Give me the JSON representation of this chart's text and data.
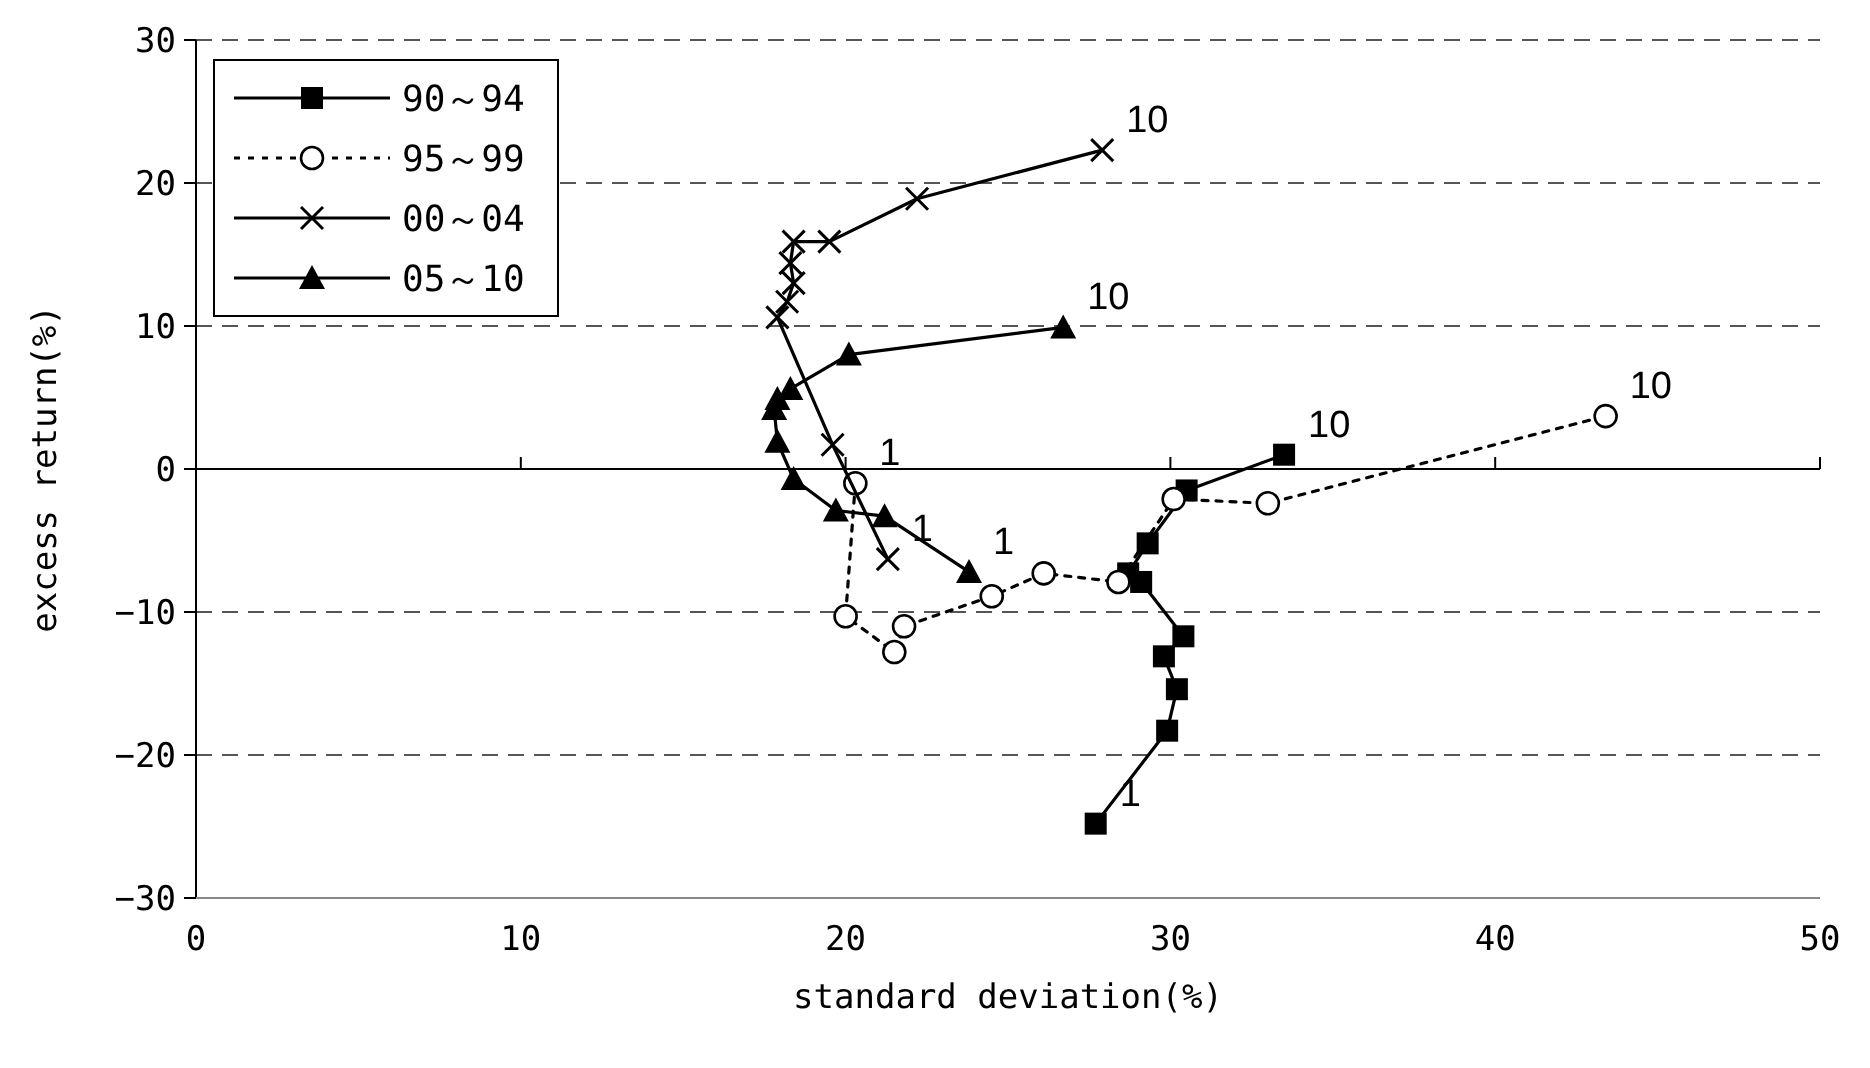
{
  "chart_data": {
    "type": "line",
    "xlabel": "standard deviation(%)",
    "ylabel": "excess return(%)",
    "xlim": [
      0,
      50
    ],
    "xticks": [
      0,
      10,
      20,
      30,
      40,
      50
    ],
    "ylim": [
      -30,
      30
    ],
    "yticks": [
      {
        "value": -30,
        "label": "−30"
      },
      {
        "value": -20,
        "label": "−20"
      },
      {
        "value": -10,
        "label": "−10"
      },
      0,
      10,
      20,
      30
    ],
    "grid": "y",
    "legend": "top left",
    "ref_lines": [
      {
        "axis": "y",
        "value": 0,
        "color": "#000000",
        "line_style": "solid"
      }
    ],
    "series": [
      {
        "name": "90～94",
        "color": "#000000",
        "marker": "square",
        "line_style": "solid",
        "x": [
          27.7,
          29.9,
          30.2,
          29.8,
          30.4,
          29.1,
          28.7,
          29.3,
          30.5,
          33.5
        ],
        "values": [
          -24.8,
          -18.3,
          -15.4,
          -13.1,
          -11.7,
          -7.9,
          -7.3,
          -5.2,
          -1.5,
          1.0
        ]
      },
      {
        "name": "95～99",
        "color": "#000000",
        "marker": "circle",
        "line_style": "dotted",
        "x": [
          20.3,
          20.0,
          21.5,
          21.8,
          24.5,
          26.1,
          28.4,
          30.1,
          33.0,
          43.4
        ],
        "values": [
          -1.0,
          -10.3,
          -12.8,
          -11.0,
          -8.9,
          -7.3,
          -7.9,
          -2.1,
          -2.4,
          3.7
        ]
      },
      {
        "name": "00～04",
        "color": "#000000",
        "marker": "cross",
        "line_style": "solid",
        "x": [
          21.3,
          19.6,
          17.9,
          18.2,
          18.4,
          18.3,
          18.4,
          19.5,
          22.2,
          27.9
        ],
        "values": [
          -6.3,
          1.7,
          10.6,
          11.7,
          13.0,
          14.4,
          15.9,
          15.9,
          18.9,
          22.3
        ]
      },
      {
        "name": "05～10",
        "color": "#000000",
        "marker": "triangle",
        "line_style": "solid",
        "x": [
          23.8,
          21.2,
          19.7,
          18.4,
          17.9,
          17.8,
          17.9,
          18.3,
          20.1,
          26.7
        ],
        "values": [
          -7.2,
          -3.3,
          -2.9,
          -0.7,
          1.9,
          4.2,
          4.9,
          5.6,
          8.0,
          9.9
        ]
      }
    ],
    "annotations": [
      {
        "text": "1",
        "x": 27.7,
        "y": -24.8
      },
      {
        "text": "10",
        "x": 33.5,
        "y": 1.0
      },
      {
        "text": "1",
        "x": 20.3,
        "y": -1.0
      },
      {
        "text": "10",
        "x": 43.4,
        "y": 3.7
      },
      {
        "text": "1",
        "x": 21.3,
        "y": -6.3
      },
      {
        "text": "10",
        "x": 27.9,
        "y": 22.3
      },
      {
        "text": "1",
        "x": 23.8,
        "y": -7.2
      },
      {
        "text": "10",
        "x": 26.7,
        "y": 9.9
      }
    ]
  }
}
